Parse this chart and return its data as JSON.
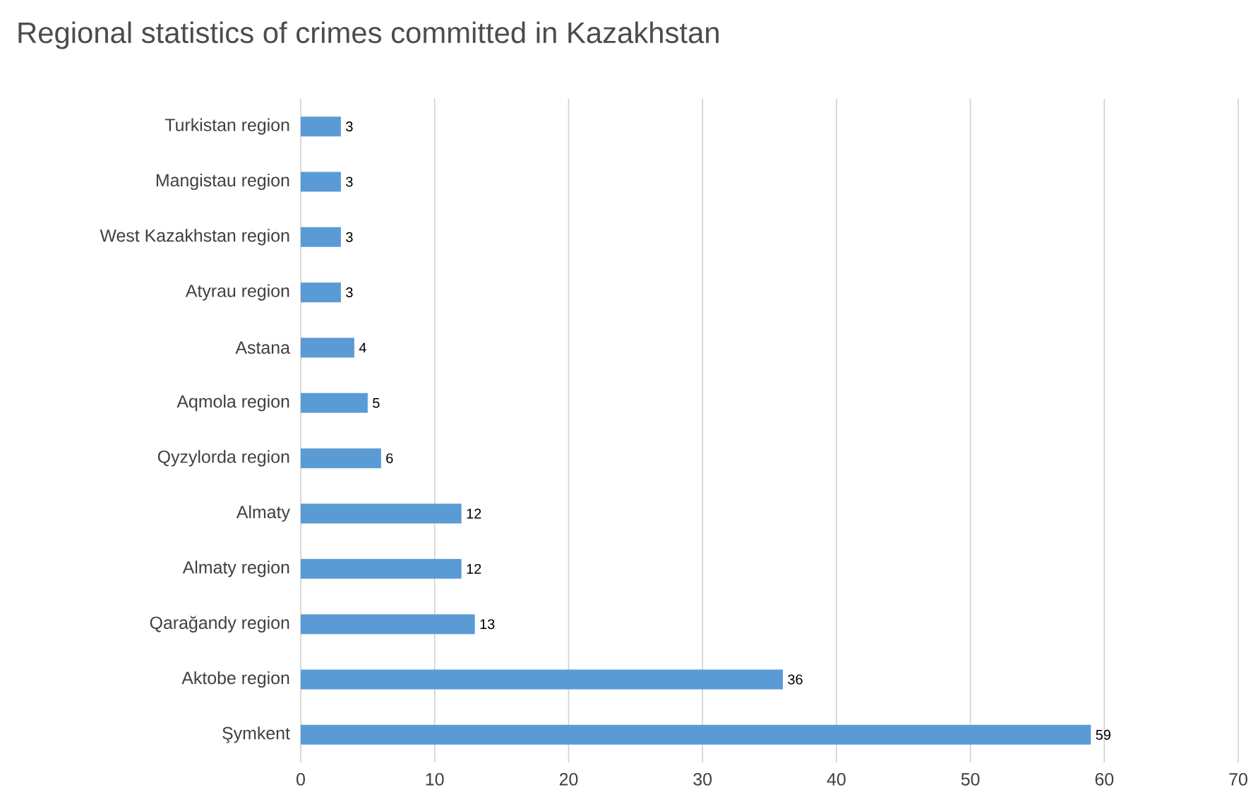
{
  "chart_data": {
    "type": "bar",
    "orientation": "horizontal",
    "title": "Regional statistics of crimes committed in Kazakhstan",
    "categories": [
      "Turkistan region",
      "Mangistau region",
      "West Kazakhstan region",
      "Atyrau region",
      "Astana",
      "Aqmola region",
      "Qyzylorda region",
      "Almaty",
      "Almaty region",
      "Qarağandy region",
      "Aktobe region",
      "Şymkent"
    ],
    "values": [
      3,
      3,
      3,
      3,
      4,
      5,
      6,
      12,
      12,
      13,
      36,
      59
    ],
    "color": "#5b9bd5",
    "xlim": [
      0,
      70
    ],
    "xticks": [
      0,
      10,
      20,
      30,
      40,
      50,
      60,
      70
    ],
    "grid": "x",
    "data_labels": true
  }
}
